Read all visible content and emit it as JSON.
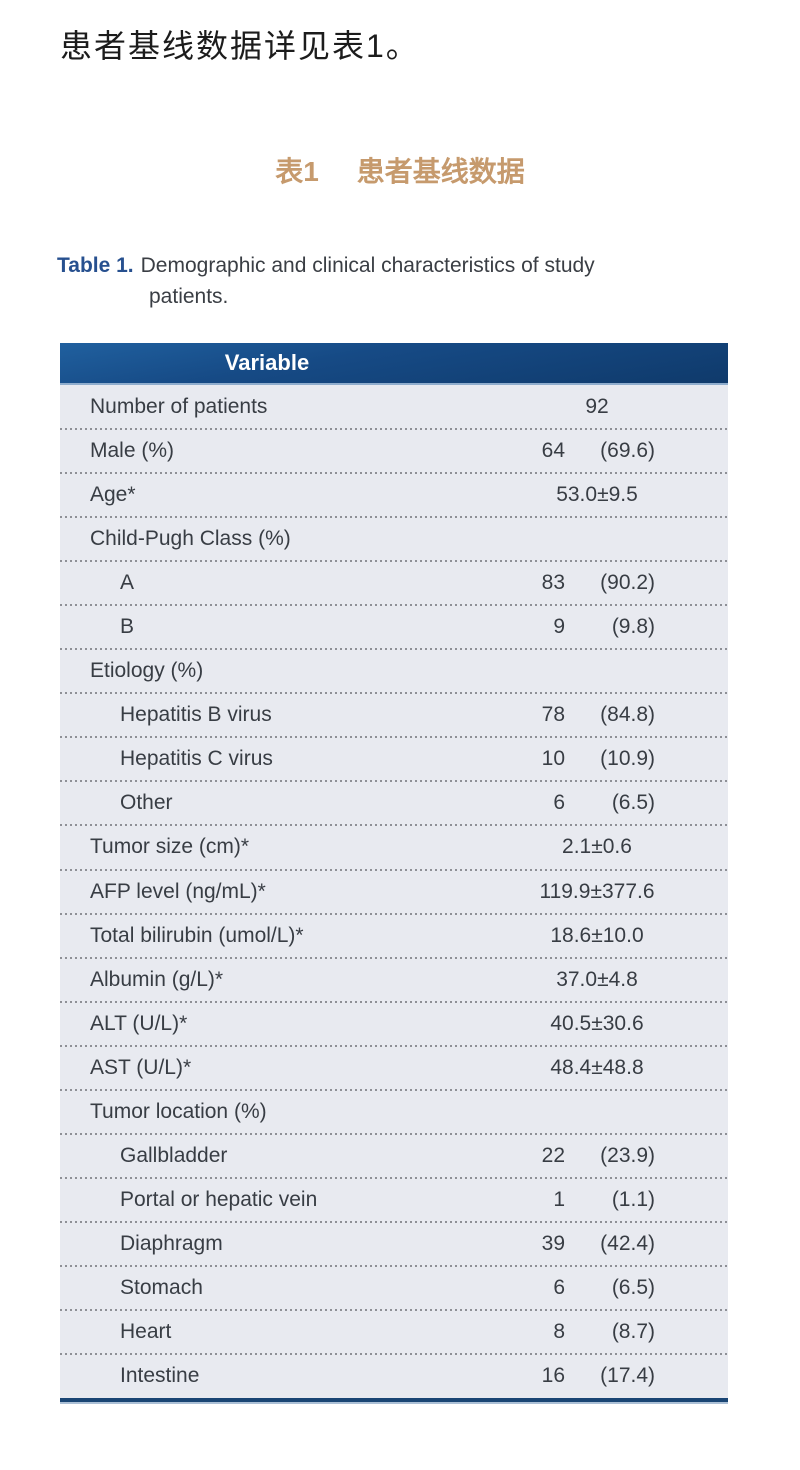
{
  "intro": {
    "text": "患者基线数据详见表1。"
  },
  "zh_heading": {
    "label": "表1",
    "title": "患者基线数据",
    "color": "#c69a6d"
  },
  "caption": {
    "label": "Table 1.",
    "line1": "Demographic and clinical characteristics of study",
    "line2": "patients.",
    "label_color": "#27508f"
  },
  "table": {
    "header": {
      "title": "Variable"
    },
    "colors": {
      "header_bg_top": "#20609f",
      "header_bg_bottom": "#0f3a6b",
      "header_text": "#ffffff",
      "row_bg": "#e8eaf0",
      "row_text": "#383d44",
      "dotted_separator": "#8e9096",
      "bottom_border": "#1a4574"
    },
    "rows": [
      {
        "label": "Number of patients",
        "indent": 0,
        "type": "single",
        "value": "92"
      },
      {
        "label": "Male (%)",
        "indent": 0,
        "type": "pair",
        "count": "64",
        "pct": "(69.6)"
      },
      {
        "label": "Age*",
        "indent": 0,
        "type": "single",
        "value": "53.0±9.5"
      },
      {
        "label": "Child-Pugh Class (%)",
        "indent": 0,
        "type": "none"
      },
      {
        "label": "A",
        "indent": 1,
        "type": "pair",
        "count": "83",
        "pct": "(90.2)"
      },
      {
        "label": "B",
        "indent": 1,
        "type": "pair",
        "count": "9",
        "pct": "(9.8)"
      },
      {
        "label": "Etiology (%)",
        "indent": 0,
        "type": "none"
      },
      {
        "label": "Hepatitis B virus",
        "indent": 1,
        "type": "pair",
        "count": "78",
        "pct": "(84.8)"
      },
      {
        "label": "Hepatitis C virus",
        "indent": 1,
        "type": "pair",
        "count": "10",
        "pct": "(10.9)"
      },
      {
        "label": "Other",
        "indent": 1,
        "type": "pair",
        "count": "6",
        "pct": "(6.5)"
      },
      {
        "label": "Tumor size (cm)*",
        "indent": 0,
        "type": "single",
        "value": "2.1±0.6"
      },
      {
        "label": "AFP level (ng/mL)*",
        "indent": 0,
        "type": "single",
        "value": "119.9±377.6"
      },
      {
        "label": "Total bilirubin (umol/L)*",
        "indent": 0,
        "type": "single",
        "value": "18.6±10.0"
      },
      {
        "label": "Albumin (g/L)*",
        "indent": 0,
        "type": "single",
        "value": "37.0±4.8"
      },
      {
        "label": "ALT (U/L)*",
        "indent": 0,
        "type": "single",
        "value": "40.5±30.6"
      },
      {
        "label": "AST (U/L)*",
        "indent": 0,
        "type": "single",
        "value": "48.4±48.8"
      },
      {
        "label": "Tumor location (%)",
        "indent": 0,
        "type": "none"
      },
      {
        "label": "Gallbladder",
        "indent": 1,
        "type": "pair",
        "count": "22",
        "pct": "(23.9)"
      },
      {
        "label": "Portal or hepatic vein",
        "indent": 1,
        "type": "pair",
        "count": "1",
        "pct": "(1.1)"
      },
      {
        "label": "Diaphragm",
        "indent": 1,
        "type": "pair",
        "count": "39",
        "pct": "(42.4)"
      },
      {
        "label": "Stomach",
        "indent": 1,
        "type": "pair",
        "count": "6",
        "pct": "(6.5)"
      },
      {
        "label": "Heart",
        "indent": 1,
        "type": "pair",
        "count": "8",
        "pct": "(8.7)"
      },
      {
        "label": "Intestine",
        "indent": 1,
        "type": "pair",
        "count": "16",
        "pct": "(17.4)"
      }
    ]
  }
}
